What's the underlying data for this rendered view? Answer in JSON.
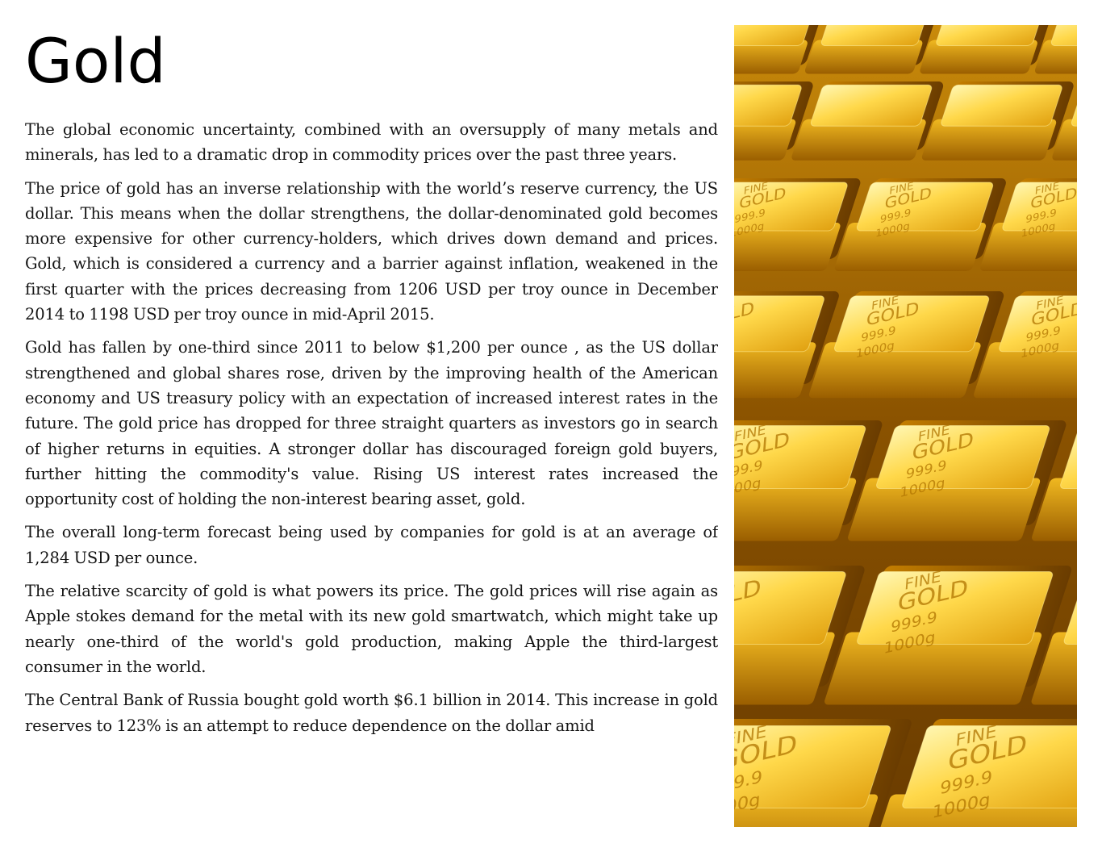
{
  "title": "Gold",
  "paragraphs": [
    "The global economic uncertainty, combined with an oversupply of many metals and minerals, has led to a dramatic drop in commodity prices over the past three years.",
    "The price of gold has an inverse relationship with the world’s reserve currency, the US dollar. This means when the dollar strengthens, the dollar-denominated gold becomes more expensive for other currency-holders, which drives down demand and prices. Gold, which is considered a currency and a barrier against inflation, weakened in the first quarter with the prices decreasing from 1206 USD per troy ounce in December 2014 to 1198 USD per troy ounce in mid-April 2015.",
    "Gold  has fallen by one-third since 2011 to below $1,200 per ounce , as the US dollar strengthened and global shares rose, driven by the improving health of the American economy and US treasury policy with an expectation of increased interest rates in the future. The gold price has dropped for three straight quarters as investors go in search of higher returns in equities. A stronger dollar has discouraged foreign gold buyers, further hitting the commodity's value. Rising US interest rates increased the opportunity cost of holding the non-interest bearing asset, gold.",
    "The overall long-term forecast being used by companies for gold is at an average of 1,284 USD per ounce.",
    "The relative scarcity of gold is what powers its price. The gold prices will rise again as Apple stokes demand for the metal with its new gold smartwatch, which might take up nearly one-third of the world's gold production, making Apple the third-largest consumer in the world.",
    "The Central Bank of Russia bought gold worth $6.1 billion in 2014. This increase in gold reserves to 123% is an attempt to reduce dependence on the dollar amid"
  ],
  "image": {
    "icon": "gold-bars-photo",
    "bar_text": {
      "fine": "FINE",
      "gold": "GOLD",
      "purity": "999.9",
      "weight": "1000g"
    },
    "colors": {
      "highlight": "#fff4a8",
      "light": "#ffd84a",
      "mid": "#e8a810",
      "dark": "#8a5200",
      "deep": "#4a2a00"
    }
  }
}
